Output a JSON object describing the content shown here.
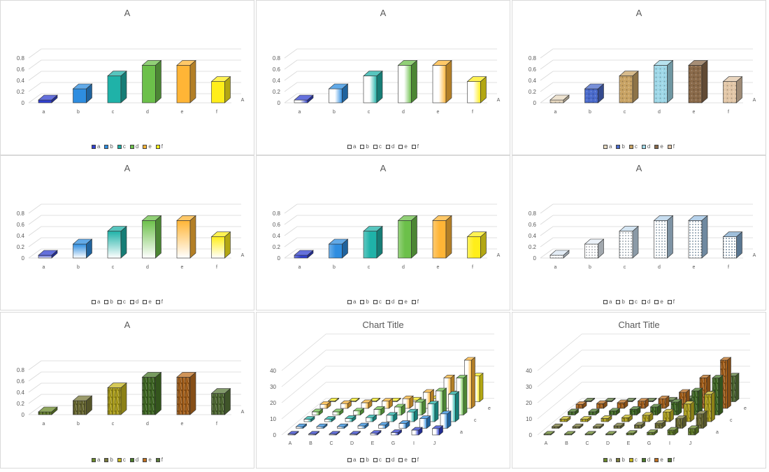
{
  "chart_data": [
    {
      "type": "bar",
      "title": "A",
      "categories": [
        "a",
        "b",
        "c",
        "d",
        "e",
        "f"
      ],
      "series": [
        {
          "name": "A",
          "values": [
            0.05,
            0.25,
            0.48,
            0.67,
            0.67,
            0.38
          ]
        }
      ],
      "ylim": [
        0,
        0.8
      ],
      "yticks": [
        "0",
        "0.2",
        "0.4",
        "0.6",
        "0.8"
      ],
      "depth_label": "A",
      "legend": [
        "a",
        "b",
        "c",
        "d",
        "e",
        "f"
      ],
      "colors": [
        "#3040d0",
        "#2e8de0",
        "#1fb2a8",
        "#6cc04a",
        "#ffb536",
        "#ffee1a"
      ],
      "fill_style": "solid",
      "legend_style": "color",
      "grid": true,
      "legend_position": "bottom"
    },
    {
      "type": "bar",
      "title": "A",
      "categories": [
        "a",
        "b",
        "c",
        "d",
        "e",
        "f"
      ],
      "series": [
        {
          "name": "A",
          "values": [
            0.05,
            0.25,
            0.48,
            0.67,
            0.67,
            0.38
          ]
        }
      ],
      "ylim": [
        0,
        0.8
      ],
      "yticks": [
        "0",
        "0.2",
        "0.4",
        "0.6",
        "0.8"
      ],
      "depth_label": "A",
      "legend": [
        "a",
        "b",
        "c",
        "d",
        "e",
        "f"
      ],
      "colors": [
        "#3040d0",
        "#2e8de0",
        "#1fb2a8",
        "#6cc04a",
        "#ffb536",
        "#ffee1a"
      ],
      "fill_style": "gradient-h",
      "legend_style": "plain",
      "grid": true,
      "legend_position": "bottom"
    },
    {
      "type": "bar",
      "title": "A",
      "categories": [
        "a",
        "b",
        "c",
        "d",
        "e",
        "f"
      ],
      "series": [
        {
          "name": "A",
          "values": [
            0.05,
            0.25,
            0.48,
            0.67,
            0.67,
            0.38
          ]
        }
      ],
      "ylim": [
        0,
        0.8
      ],
      "yticks": [
        "0",
        "0.2",
        "0.4",
        "0.6",
        "0.8"
      ],
      "depth_label": "A",
      "legend": [
        "a",
        "b",
        "c",
        "d",
        "e",
        "f"
      ],
      "colors": [
        "#e8d9c0",
        "#4a6acb",
        "#c9a465",
        "#9fd8e8",
        "#8a6a4a",
        "#e2c7a8"
      ],
      "fill_style": "texture",
      "legend_style": "color",
      "grid": true,
      "legend_position": "bottom"
    },
    {
      "type": "bar",
      "title": "A",
      "categories": [
        "a",
        "b",
        "c",
        "d",
        "e",
        "f"
      ],
      "series": [
        {
          "name": "A",
          "values": [
            0.05,
            0.25,
            0.48,
            0.67,
            0.67,
            0.38
          ]
        }
      ],
      "ylim": [
        0,
        0.8
      ],
      "yticks": [
        "0",
        "0.2",
        "0.4",
        "0.6",
        "0.8"
      ],
      "depth_label": "A",
      "legend": [
        "a",
        "b",
        "c",
        "d",
        "e",
        "f"
      ],
      "colors": [
        "#3040d0",
        "#2e8de0",
        "#1fb2a8",
        "#6cc04a",
        "#ffb536",
        "#ffee1a"
      ],
      "fill_style": "gradient-v",
      "legend_style": "plain",
      "grid": true,
      "legend_position": "bottom"
    },
    {
      "type": "bar",
      "title": "A",
      "categories": [
        "a",
        "b",
        "c",
        "d",
        "e",
        "f"
      ],
      "series": [
        {
          "name": "A",
          "values": [
            0.05,
            0.25,
            0.48,
            0.67,
            0.67,
            0.38
          ]
        }
      ],
      "ylim": [
        0,
        0.8
      ],
      "yticks": [
        "0",
        "0.2",
        "0.4",
        "0.6",
        "0.8"
      ],
      "depth_label": "A",
      "legend": [
        "a",
        "b",
        "c",
        "d",
        "e",
        "f"
      ],
      "colors": [
        "#3040d0",
        "#2e8de0",
        "#1fb2a8",
        "#6cc04a",
        "#ffb536",
        "#ffee1a"
      ],
      "fill_style": "gradient-h2",
      "legend_style": "plain",
      "grid": true,
      "legend_position": "bottom"
    },
    {
      "type": "bar",
      "title": "A",
      "categories": [
        "a",
        "b",
        "c",
        "d",
        "e",
        "f"
      ],
      "series": [
        {
          "name": "A",
          "values": [
            0.05,
            0.25,
            0.48,
            0.67,
            0.67,
            0.38
          ]
        }
      ],
      "ylim": [
        0,
        0.8
      ],
      "yticks": [
        "0",
        "0.2",
        "0.4",
        "0.6",
        "0.8"
      ],
      "depth_label": "A",
      "legend": [
        "a",
        "b",
        "c",
        "d",
        "e",
        "f"
      ],
      "colors": [
        "#dbe7f3",
        "#e6eef7",
        "#c6dcee",
        "#b4d2ea",
        "#9ec3e4",
        "#7fa9cf"
      ],
      "fill_style": "pattern",
      "legend_style": "plain",
      "grid": true,
      "legend_position": "bottom"
    },
    {
      "type": "bar",
      "title": "A",
      "categories": [
        "a",
        "b",
        "c",
        "d",
        "e",
        "f"
      ],
      "series": [
        {
          "name": "A",
          "values": [
            0.05,
            0.25,
            0.48,
            0.67,
            0.67,
            0.38
          ]
        }
      ],
      "ylim": [
        0,
        0.8
      ],
      "yticks": [
        "0",
        "0.2",
        "0.4",
        "0.6",
        "0.8"
      ],
      "depth_label": "A",
      "legend": [
        "a",
        "b",
        "c",
        "d",
        "e",
        "f"
      ],
      "colors": [
        "#6a8a2a",
        "#7a7a3a",
        "#c8b820",
        "#4a7a2a",
        "#c07020",
        "#5a7a3a"
      ],
      "fill_style": "photo",
      "legend_style": "color",
      "grid": true,
      "legend_position": "bottom"
    },
    {
      "type": "bar",
      "title": "Chart Title",
      "categories": [
        "A",
        "B",
        "C",
        "D",
        "E",
        "G",
        "I",
        "J"
      ],
      "depth_labels": [
        "a",
        "c",
        "e"
      ],
      "series": [
        {
          "name": "a",
          "values": [
            0.5,
            0.5,
            0.5,
            0.5,
            1,
            1.5,
            3,
            4
          ]
        },
        {
          "name": "b",
          "values": [
            1,
            1,
            1,
            1.5,
            2,
            3,
            6,
            9
          ]
        },
        {
          "name": "c",
          "values": [
            1.5,
            1.5,
            2,
            2.5,
            4,
            6,
            11,
            17
          ]
        },
        {
          "name": "d",
          "values": [
            2,
            2,
            2.5,
            3.5,
            5,
            8,
            15,
            23
          ]
        },
        {
          "name": "e",
          "values": [
            2.5,
            3,
            3.5,
            4.5,
            6,
            10,
            19,
            30
          ]
        },
        {
          "name": "f",
          "values": [
            0.5,
            0.5,
            0.5,
            0.5,
            1,
            2,
            5,
            16
          ]
        }
      ],
      "ylim": [
        0,
        40
      ],
      "yticks": [
        "0",
        "10",
        "20",
        "30",
        "40"
      ],
      "legend": [
        "a",
        "b",
        "c",
        "d",
        "e",
        "f"
      ],
      "colors": [
        "#3040d0",
        "#2e8de0",
        "#1fb2a8",
        "#6cc04a",
        "#ffb536",
        "#ffee1a"
      ],
      "fill_style": "gradient-h",
      "legend_style": "plain",
      "grid": true,
      "legend_position": "bottom"
    },
    {
      "type": "bar",
      "title": "Chart Title",
      "categories": [
        "A",
        "B",
        "C",
        "D",
        "E",
        "G",
        "I",
        "J"
      ],
      "depth_labels": [
        "a",
        "c",
        "e"
      ],
      "series": [
        {
          "name": "a",
          "values": [
            0.5,
            0.5,
            0.5,
            0.5,
            1,
            1.5,
            3,
            4
          ]
        },
        {
          "name": "b",
          "values": [
            1,
            1,
            1,
            1.5,
            2,
            3,
            6,
            9
          ]
        },
        {
          "name": "c",
          "values": [
            1.5,
            1.5,
            2,
            2.5,
            4,
            6,
            11,
            17
          ]
        },
        {
          "name": "d",
          "values": [
            2,
            2,
            2.5,
            3.5,
            5,
            8,
            15,
            23
          ]
        },
        {
          "name": "e",
          "values": [
            2.5,
            3,
            3.5,
            4.5,
            6,
            10,
            19,
            30
          ]
        },
        {
          "name": "f",
          "values": [
            0.5,
            0.5,
            0.5,
            0.5,
            1,
            2,
            5,
            16
          ]
        }
      ],
      "ylim": [
        0,
        40
      ],
      "yticks": [
        "0",
        "10",
        "20",
        "30",
        "40"
      ],
      "legend": [
        "a",
        "b",
        "c",
        "d",
        "e",
        "f"
      ],
      "colors": [
        "#6a8a2a",
        "#7a7a3a",
        "#c8b820",
        "#4a7a2a",
        "#c07020",
        "#5a7a3a"
      ],
      "fill_style": "photo",
      "legend_style": "color",
      "grid": true,
      "legend_position": "bottom"
    }
  ]
}
